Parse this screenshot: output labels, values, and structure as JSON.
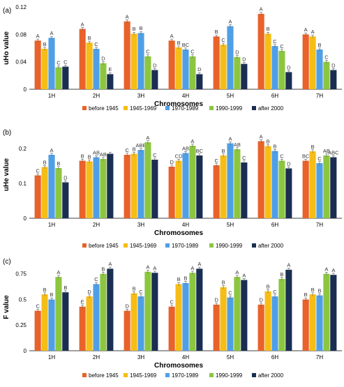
{
  "panels": [
    {
      "letter": "(a)",
      "chart_data": {
        "type": "bar",
        "ylabel": "uHo value",
        "xlabel": "Chromosomes",
        "ylim": [
          0,
          0.12
        ],
        "yticks": [
          "0",
          "0.04",
          "0.08",
          "0.12"
        ],
        "grid": false,
        "legend_position": "bottom",
        "categories": [
          "1H",
          "2H",
          "3H",
          "4H",
          "5H",
          "6H",
          "7H"
        ],
        "series": [
          {
            "name": "before 1945",
            "values": [
              0.071,
              0.088,
              0.099,
              0.071,
              0.077,
              0.11,
              0.08
            ],
            "letters": [
              "A",
              "A",
              "A",
              "A",
              "B",
              "A",
              "A"
            ]
          },
          {
            "name": "1945-1969",
            "values": [
              0.059,
              0.068,
              0.081,
              0.061,
              0.065,
              0.081,
              0.077
            ],
            "letters": [
              "B",
              "B",
              "B",
              "B",
              "C",
              "B",
              "A"
            ]
          },
          {
            "name": "1970-1989",
            "values": [
              0.075,
              0.059,
              0.082,
              0.058,
              0.092,
              0.063,
              0.058
            ],
            "letters": [
              "A",
              "C",
              "B",
              "BC",
              "A",
              "C",
              "B"
            ]
          },
          {
            "name": "1990-1999",
            "values": [
              0.032,
              0.038,
              0.048,
              0.048,
              0.047,
              0.056,
              0.04
            ],
            "letters": [
              "C",
              "D",
              "C",
              "C",
              "D",
              "C",
              "C"
            ]
          },
          {
            "name": "after 2000",
            "values": [
              0.033,
              0.022,
              0.028,
              0.022,
              0.037,
              0.025,
              0.028
            ],
            "letters": [
              "C",
              "E",
              "D",
              "D",
              "D",
              "D",
              "D"
            ]
          }
        ]
      }
    },
    {
      "letter": "(b)",
      "chart_data": {
        "type": "bar",
        "ylabel": "uHe value",
        "xlabel": "Chromosomes",
        "ylim": [
          0,
          0.25
        ],
        "yticks": [
          "0",
          "0.1",
          "0.2"
        ],
        "grid": false,
        "legend_position": "bottom",
        "categories": [
          "1H",
          "2H",
          "3H",
          "4H",
          "5H",
          "6H",
          "7H"
        ],
        "series": [
          {
            "name": "before 1945",
            "values": [
              0.123,
              0.165,
              0.182,
              0.148,
              0.152,
              0.221,
              0.165
            ],
            "letters": [
              "C",
              "B",
              "C",
              "D",
              "C",
              "A",
              "BC"
            ]
          },
          {
            "name": "1945-1969",
            "values": [
              0.147,
              0.163,
              0.185,
              0.165,
              0.18,
              0.207,
              0.192
            ],
            "letters": [
              "B",
              "B",
              "B",
              "CD",
              "B",
              "B",
              "B"
            ]
          },
          {
            "name": "1970-1989",
            "values": [
              0.182,
              0.175,
              0.196,
              0.187,
              0.215,
              0.193,
              0.158
            ],
            "letters": [
              "A",
              "AB",
              "ABB",
              "AB",
              "A",
              "B",
              "C"
            ]
          },
          {
            "name": "1990-1999",
            "values": [
              0.144,
              0.17,
              0.218,
              0.208,
              0.198,
              0.165,
              0.18
            ],
            "letters": [
              "B",
              "AB",
              "A",
              "A",
              "AB",
              "C",
              "AB"
            ]
          },
          {
            "name": "after 2000",
            "values": [
              0.103,
              0.185,
              0.168,
              0.18,
              0.16,
              0.143,
              0.175
            ],
            "letters": [
              "D",
              "",
              "C",
              "BC",
              "C",
              "D",
              "ABC"
            ]
          }
        ]
      }
    },
    {
      "letter": "(c)",
      "chart_data": {
        "type": "bar",
        "ylabel": "F value",
        "xlabel": "Chromosomes",
        "ylim": [
          0,
          0.85
        ],
        "yticks": [
          "0",
          "0.25",
          "0.5",
          "0.75"
        ],
        "grid": false,
        "legend_position": "bottom",
        "categories": [
          "1H",
          "2H",
          "3H",
          "4H",
          "5H",
          "6H",
          "7H"
        ],
        "series": [
          {
            "name": "before 1945",
            "values": [
              0.39,
              0.43,
              0.39,
              0.43,
              0.45,
              0.45,
              0.5
            ],
            "letters": [
              "C",
              "E",
              "D",
              "C",
              "D",
              "D",
              "B"
            ]
          },
          {
            "name": "1945-1969",
            "values": [
              0.55,
              0.53,
              0.56,
              0.65,
              0.62,
              0.58,
              0.55
            ],
            "letters": [
              "B",
              "D",
              "B",
              "B",
              "B",
              "B",
              "B"
            ]
          },
          {
            "name": "1970-1989",
            "values": [
              0.5,
              0.65,
              0.53,
              0.66,
              0.52,
              0.53,
              0.54
            ],
            "letters": [
              "B",
              "C",
              "C",
              "B",
              "C",
              "C",
              "B"
            ]
          },
          {
            "name": "1990-1999",
            "values": [
              0.72,
              0.75,
              0.77,
              0.76,
              0.72,
              0.7,
              0.75
            ],
            "letters": [
              "A",
              "B",
              "A",
              "A",
              "A",
              "B",
              "A"
            ]
          },
          {
            "name": "after 2000",
            "values": [
              0.57,
              0.8,
              0.76,
              0.8,
              0.69,
              0.79,
              0.74
            ],
            "letters": [
              "B",
              "A",
              "A",
              "A",
              "A",
              "A",
              "A"
            ]
          }
        ]
      }
    }
  ],
  "colors": {
    "series": [
      "#e8622a",
      "#f6bd16",
      "#4f9fe6",
      "#8cc63f",
      "#1a2e52"
    ],
    "letter": "#333333",
    "axis": "#888888"
  }
}
